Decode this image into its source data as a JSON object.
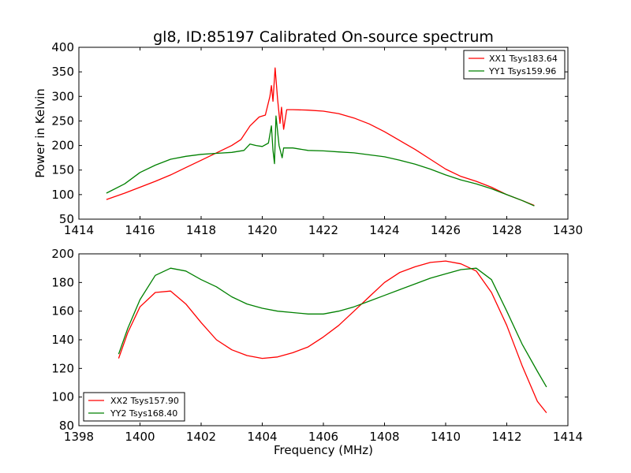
{
  "chart_data": [
    {
      "type": "line",
      "title": "gl8, ID:85197 Calibrated On-source spectrum",
      "xlabel": "",
      "ylabel": "Power in Kelvin",
      "xlim": [
        1414,
        1430
      ],
      "ylim": [
        50,
        400
      ],
      "xticks": [
        "1414",
        "1416",
        "1418",
        "1420",
        "1422",
        "1424",
        "1426",
        "1428",
        "1430"
      ],
      "yticks": [
        "50",
        "100",
        "150",
        "200",
        "250",
        "300",
        "350",
        "400"
      ],
      "legend_position": "top-right",
      "series": [
        {
          "name": "XX1 Tsys183.64",
          "color": "#ff0000",
          "points": [
            [
              1414.9,
              90
            ],
            [
              1415.5,
              103
            ],
            [
              1416,
              115
            ],
            [
              1416.5,
              127
            ],
            [
              1417,
              140
            ],
            [
              1417.5,
              155
            ],
            [
              1418,
              170
            ],
            [
              1418.5,
              185
            ],
            [
              1419,
              200
            ],
            [
              1419.3,
              212
            ],
            [
              1419.6,
              240
            ],
            [
              1419.9,
              258
            ],
            [
              1420.1,
              262
            ],
            [
              1420.25,
              300
            ],
            [
              1420.3,
              322
            ],
            [
              1420.35,
              290
            ],
            [
              1420.42,
              358
            ],
            [
              1420.5,
              295
            ],
            [
              1420.58,
              245
            ],
            [
              1420.63,
              278
            ],
            [
              1420.7,
              233
            ],
            [
              1420.8,
              273
            ],
            [
              1421,
              273
            ],
            [
              1421.5,
              272
            ],
            [
              1422,
              270
            ],
            [
              1422.5,
              265
            ],
            [
              1423,
              256
            ],
            [
              1423.5,
              244
            ],
            [
              1424,
              228
            ],
            [
              1424.5,
              210
            ],
            [
              1425,
              192
            ],
            [
              1425.5,
              172
            ],
            [
              1426,
              152
            ],
            [
              1426.5,
              137
            ],
            [
              1427,
              127
            ],
            [
              1427.5,
              115
            ],
            [
              1428,
              100
            ],
            [
              1428.5,
              88
            ],
            [
              1428.9,
              78
            ]
          ]
        },
        {
          "name": "YY1 Tsys159.96",
          "color": "#008000",
          "points": [
            [
              1414.9,
              103
            ],
            [
              1415.5,
              122
            ],
            [
              1416,
              145
            ],
            [
              1416.5,
              160
            ],
            [
              1417,
              172
            ],
            [
              1417.5,
              178
            ],
            [
              1418,
              182
            ],
            [
              1418.5,
              184
            ],
            [
              1419,
              186
            ],
            [
              1419.4,
              190
            ],
            [
              1419.6,
              203
            ],
            [
              1419.8,
              200
            ],
            [
              1420,
              198
            ],
            [
              1420.2,
              205
            ],
            [
              1420.3,
              240
            ],
            [
              1420.35,
              190
            ],
            [
              1420.4,
              163
            ],
            [
              1420.45,
              260
            ],
            [
              1420.55,
              200
            ],
            [
              1420.65,
              175
            ],
            [
              1420.7,
              195
            ],
            [
              1421,
              195
            ],
            [
              1421.5,
              190
            ],
            [
              1422,
              189
            ],
            [
              1422.5,
              187
            ],
            [
              1423,
              185
            ],
            [
              1423.5,
              181
            ],
            [
              1424,
              177
            ],
            [
              1424.5,
              170
            ],
            [
              1425,
              162
            ],
            [
              1425.5,
              152
            ],
            [
              1426,
              140
            ],
            [
              1426.5,
              130
            ],
            [
              1427,
              122
            ],
            [
              1427.5,
              112
            ],
            [
              1428,
              100
            ],
            [
              1428.5,
              88
            ],
            [
              1428.9,
              77
            ]
          ]
        }
      ]
    },
    {
      "type": "line",
      "title": "",
      "xlabel": "Frequency (MHz)",
      "ylabel": "",
      "xlim": [
        1398,
        1414
      ],
      "ylim": [
        80,
        200
      ],
      "xticks": [
        "1398",
        "1400",
        "1402",
        "1404",
        "1406",
        "1408",
        "1410",
        "1412",
        "1414"
      ],
      "yticks": [
        "80",
        "100",
        "120",
        "140",
        "160",
        "180",
        "200"
      ],
      "legend_position": "bottom-left",
      "series": [
        {
          "name": "XX2 Tsys157.90",
          "color": "#ff0000",
          "points": [
            [
              1399.3,
              127
            ],
            [
              1399.6,
              145
            ],
            [
              1400,
              163
            ],
            [
              1400.5,
              173
            ],
            [
              1401,
              174
            ],
            [
              1401.5,
              165
            ],
            [
              1402,
              152
            ],
            [
              1402.5,
              140
            ],
            [
              1403,
              133
            ],
            [
              1403.5,
              129
            ],
            [
              1404,
              127
            ],
            [
              1404.5,
              128
            ],
            [
              1405,
              131
            ],
            [
              1405.5,
              135
            ],
            [
              1406,
              142
            ],
            [
              1406.5,
              150
            ],
            [
              1407,
              160
            ],
            [
              1407.5,
              170
            ],
            [
              1408,
              180
            ],
            [
              1408.5,
              187
            ],
            [
              1409,
              191
            ],
            [
              1409.5,
              194
            ],
            [
              1410,
              195
            ],
            [
              1410.5,
              193
            ],
            [
              1411,
              188
            ],
            [
              1411.5,
              173
            ],
            [
              1412,
              150
            ],
            [
              1412.5,
              122
            ],
            [
              1413,
              97
            ],
            [
              1413.3,
              89
            ]
          ]
        },
        {
          "name": "YY2 Tsys168.40",
          "color": "#008000",
          "points": [
            [
              1399.3,
              130
            ],
            [
              1399.6,
              148
            ],
            [
              1400,
              168
            ],
            [
              1400.5,
              185
            ],
            [
              1401,
              190
            ],
            [
              1401.5,
              188
            ],
            [
              1402,
              182
            ],
            [
              1402.5,
              177
            ],
            [
              1403,
              170
            ],
            [
              1403.5,
              165
            ],
            [
              1404,
              162
            ],
            [
              1404.5,
              160
            ],
            [
              1405,
              159
            ],
            [
              1405.5,
              158
            ],
            [
              1406,
              158
            ],
            [
              1406.5,
              160
            ],
            [
              1407,
              163
            ],
            [
              1407.5,
              167
            ],
            [
              1408,
              171
            ],
            [
              1408.5,
              175
            ],
            [
              1409,
              179
            ],
            [
              1409.5,
              183
            ],
            [
              1410,
              186
            ],
            [
              1410.5,
              189
            ],
            [
              1411,
              190
            ],
            [
              1411.5,
              182
            ],
            [
              1412,
              160
            ],
            [
              1412.5,
              137
            ],
            [
              1413,
              118
            ],
            [
              1413.3,
              107
            ]
          ]
        }
      ]
    }
  ]
}
